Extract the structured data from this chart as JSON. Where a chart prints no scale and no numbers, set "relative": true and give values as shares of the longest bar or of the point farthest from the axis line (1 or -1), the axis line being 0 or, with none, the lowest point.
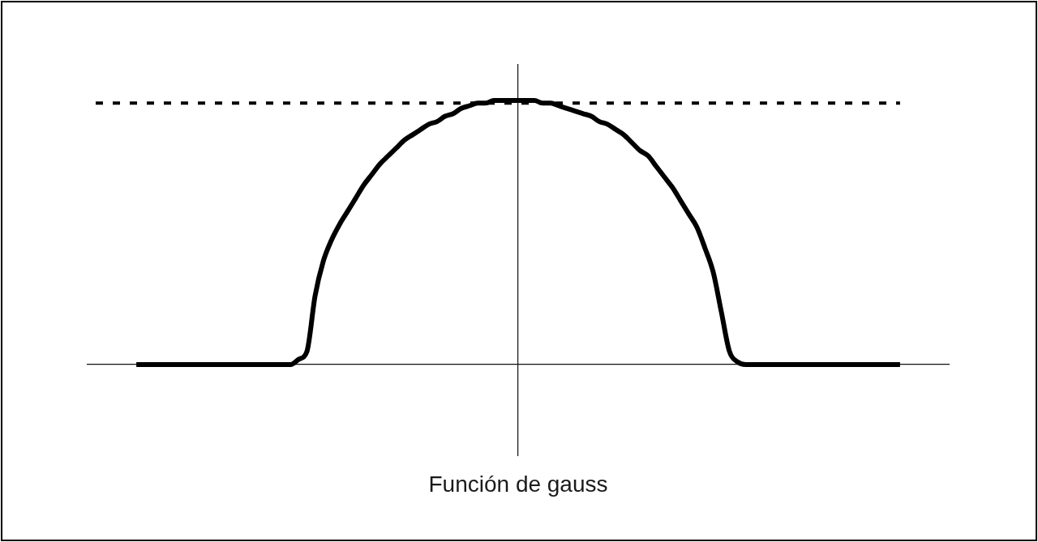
{
  "chart_data": {
    "type": "line",
    "title": "Función de gauss",
    "relative": true,
    "marker": "none",
    "categories": [
      null,
      null,
      null,
      null,
      null,
      null,
      null,
      null,
      null,
      null,
      null,
      null,
      null,
      null,
      null,
      null,
      null,
      null,
      null,
      null,
      null,
      null,
      null,
      null,
      null,
      null,
      null,
      null,
      null,
      null,
      null,
      null,
      null,
      null,
      null,
      null,
      null,
      null,
      null,
      null,
      null,
      null,
      null,
      null,
      null,
      null,
      null,
      null,
      null,
      null,
      null,
      null,
      null,
      null,
      null,
      null,
      null,
      null,
      null,
      null,
      null,
      null,
      null,
      null,
      null,
      null,
      null,
      null,
      null,
      null,
      null,
      null,
      null,
      null,
      null,
      null,
      null,
      null,
      null,
      null,
      null,
      null,
      null,
      null,
      null,
      null,
      null,
      null,
      null,
      null,
      null,
      null,
      null,
      null,
      null,
      null,
      null,
      null,
      null,
      null,
      null,
      null,
      null,
      null,
      null,
      null,
      null
    ],
    "series": [
      {
        "color": "#000000",
        "line_style": "solid",
        "values": [
          null,
          null,
          null,
          null,
          null,
          null,
          0,
          0,
          0,
          0,
          0,
          0,
          0,
          0,
          0,
          0,
          0,
          0,
          0,
          0,
          0,
          0,
          0,
          0,
          0,
          0,
          0.02,
          0.05,
          0.26,
          0.39,
          0.47,
          0.53,
          0.58,
          0.63,
          0.68,
          0.72,
          0.76,
          0.79,
          0.82,
          0.85,
          0.87,
          0.89,
          0.91,
          0.92,
          0.94,
          0.95,
          0.97,
          0.98,
          0.99,
          0.99,
          1,
          1,
          1,
          1,
          1,
          1,
          0.99,
          0.99,
          0.98,
          0.97,
          0.96,
          0.95,
          0.94,
          0.92,
          0.91,
          0.89,
          0.87,
          0.84,
          0.81,
          0.79,
          0.75,
          0.71,
          0.67,
          0.62,
          0.57,
          0.52,
          0.44,
          0.35,
          0.2,
          0.05,
          0.01,
          0,
          0,
          0,
          0,
          0,
          0,
          0,
          0,
          0,
          0,
          0,
          0,
          0,
          0,
          0,
          0,
          0,
          0,
          0,
          0,
          null,
          null,
          null,
          null,
          null,
          null
        ]
      }
    ],
    "ref_lines": [
      {
        "axis": "y",
        "value": 0.99,
        "line_style": "dashed",
        "color": "#000000"
      }
    ]
  }
}
